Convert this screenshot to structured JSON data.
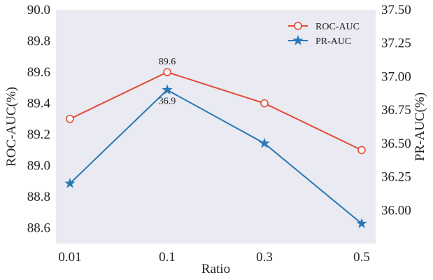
{
  "chart_data": {
    "type": "line",
    "categories": [
      "0.01",
      "0.1",
      "0.3",
      "0.5"
    ],
    "xlabel": "Ratio",
    "ylabel_left": "ROC-AUC(%)",
    "ylabel_right": "PR-AUC(%)",
    "ylim_left": [
      88.5,
      90.0
    ],
    "ylim_right": [
      35.75,
      37.5
    ],
    "yticks_left": [
      "88.6",
      "88.8",
      "89.0",
      "89.2",
      "89.4",
      "89.6",
      "89.8",
      "90.0"
    ],
    "yticks_right": [
      "36.00",
      "36.25",
      "36.50",
      "36.75",
      "37.00",
      "37.25",
      "37.50"
    ],
    "grid": false,
    "legend_position": "top-right",
    "series": [
      {
        "name": "ROC-AUC",
        "axis": "left",
        "values": [
          89.3,
          89.6,
          89.4,
          89.1
        ],
        "color": "#e24a33",
        "marker": "circle",
        "annotation": {
          "index": 1,
          "text": "89.6"
        }
      },
      {
        "name": "PR-AUC",
        "axis": "right",
        "values": [
          36.2,
          36.9,
          36.5,
          35.9
        ],
        "color": "#2a78b5",
        "marker": "star",
        "annotation": {
          "index": 1,
          "text": "36.9"
        }
      }
    ],
    "background_color": "#eaeaf2"
  }
}
